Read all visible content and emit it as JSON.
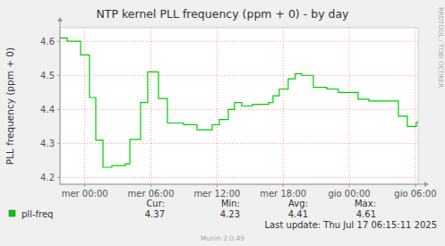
{
  "chart_data": {
    "type": "line",
    "title": "NTP kernel PLL frequency (ppm + 0) - by day",
    "y_label": "PLL frequency (ppm + 0)",
    "x": [
      -2.25,
      -1.6,
      -0.38,
      0.43,
      1.0,
      1.65,
      2.46,
      3.68,
      4.09,
      5.06,
      5.71,
      6.69,
      7.5,
      8.96,
      10.18,
      11.56,
      12.21,
      13.02,
      13.59,
      14.24,
      15.22,
      16.68,
      17.08,
      17.65,
      18.46,
      19.1,
      19.68,
      20.74,
      21.96,
      23.01,
      24.8,
      25.78,
      28.46,
      29.27,
      30.08,
      30.25
    ],
    "series": [
      {
        "name": "pll-freq",
        "color": "#00cc00",
        "line_style": "step",
        "values": [
          4.61,
          4.6,
          4.56,
          4.435,
          4.31,
          4.23,
          4.235,
          4.24,
          4.312,
          4.42,
          4.51,
          4.432,
          4.36,
          4.355,
          4.34,
          4.355,
          4.37,
          4.4,
          4.42,
          4.41,
          4.415,
          4.42,
          4.44,
          4.46,
          4.49,
          4.505,
          4.5,
          4.465,
          4.46,
          4.45,
          4.43,
          4.425,
          4.38,
          4.35,
          4.362,
          4.365
        ]
      }
    ],
    "xlim": [
      -2.25,
      30.25
    ],
    "xticks": [
      {
        "value": 0,
        "label": "mer 00:00"
      },
      {
        "value": 6,
        "label": "mer 06:00"
      },
      {
        "value": 12,
        "label": "mer 12:00"
      },
      {
        "value": 18,
        "label": "mer 18:00"
      },
      {
        "value": 24,
        "label": "gio 00:00"
      },
      {
        "value": 30,
        "label": "gio 06:00"
      }
    ],
    "ylim": [
      4.18,
      4.64
    ],
    "yticks": [
      4.2,
      4.3,
      4.4,
      4.5,
      4.6
    ],
    "grid": true,
    "stats": {
      "headers": [
        "Cur:",
        "Min:",
        "Avg:",
        "Max:"
      ],
      "values": [
        4.37,
        4.23,
        4.41,
        4.61
      ]
    },
    "last_update": "Last update: Thu Jul 17 06:15:11 2025",
    "footer": "Munin 2.0.49",
    "watermark": "RRDTOOL / TOBI OETIKER"
  }
}
